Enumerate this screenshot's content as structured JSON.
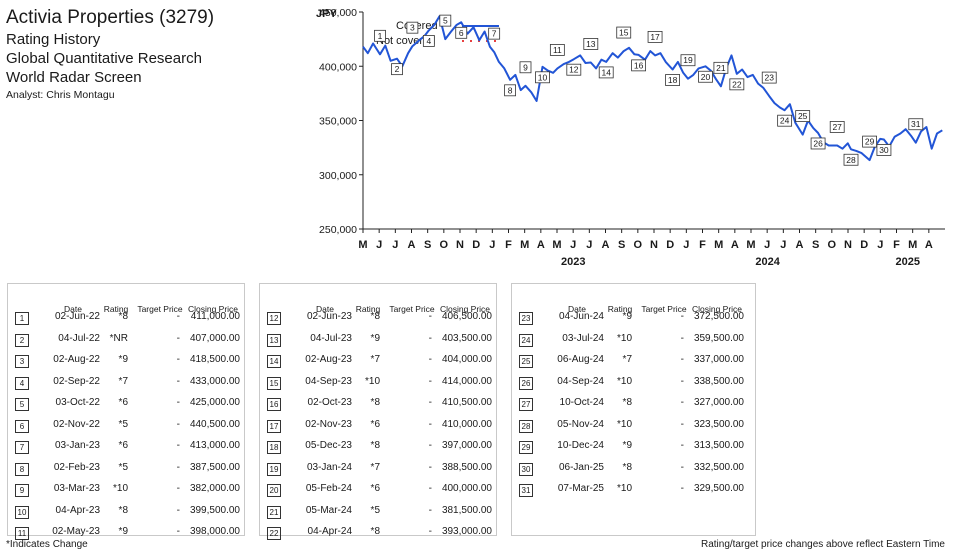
{
  "header": {
    "company": "Activia Properties (3279)",
    "line1": "Rating History",
    "line2": "Global Quantitative Research",
    "line3": "World Radar Screen",
    "analyst": "Analyst: Chris Montagu"
  },
  "chart_data": {
    "type": "line",
    "title": "",
    "ylabel": "JPY",
    "xlabel": "",
    "ylim": [
      250000,
      450000
    ],
    "yticks": [
      "250,000",
      "300,000",
      "350,000",
      "400,000",
      "450,000"
    ],
    "month_ticks": [
      "M",
      "J",
      "J",
      "A",
      "S",
      "O",
      "N",
      "D",
      "J",
      "F",
      "M",
      "A",
      "M",
      "J",
      "J",
      "A",
      "S",
      "O",
      "N",
      "D",
      "J",
      "F",
      "M",
      "A",
      "M",
      "J",
      "J",
      "A",
      "S",
      "O",
      "N",
      "D",
      "J",
      "F",
      "M",
      "A"
    ],
    "year_labels": [
      "2023",
      "2024",
      "2025"
    ],
    "legend": {
      "position": "top-left",
      "covered": "Covered",
      "not_covered": "Not covered"
    },
    "colors": {
      "covered": "#2255d6",
      "not_covered": "#e84040"
    },
    "series": [
      {
        "name": "Covered",
        "points": [
          [
            "2022-05-01",
            418000
          ],
          [
            "2022-05-10",
            412000
          ],
          [
            "2022-05-20",
            421000
          ],
          [
            "2022-06-02",
            411000
          ],
          [
            "2022-06-12",
            419000
          ],
          [
            "2022-06-22",
            405000
          ],
          [
            "2022-07-04",
            407000
          ],
          [
            "2022-07-14",
            400000
          ],
          [
            "2022-07-25",
            412000
          ],
          [
            "2022-08-02",
            418500
          ],
          [
            "2022-08-15",
            424000
          ],
          [
            "2022-08-25",
            428000
          ],
          [
            "2022-09-02",
            433000
          ],
          [
            "2022-09-12",
            438000
          ],
          [
            "2022-09-22",
            446000
          ],
          [
            "2022-10-03",
            425000
          ],
          [
            "2022-10-14",
            432000
          ],
          [
            "2022-10-24",
            438000
          ],
          [
            "2022-11-02",
            440500
          ],
          [
            "2022-11-14",
            430000
          ],
          [
            "2022-11-25",
            436000
          ],
          [
            "2022-12-06",
            424000
          ],
          [
            "2022-12-16",
            432000
          ],
          [
            "2022-12-26",
            418000
          ],
          [
            "2023-01-03",
            413000
          ],
          [
            "2023-01-12",
            404000
          ],
          [
            "2023-01-22",
            398000
          ],
          [
            "2023-02-02",
            387500
          ],
          [
            "2023-02-12",
            392000
          ],
          [
            "2023-02-22",
            378000
          ],
          [
            "2023-03-03",
            382000
          ],
          [
            "2023-03-14",
            376000
          ],
          [
            "2023-03-24",
            368000
          ],
          [
            "2023-04-04",
            399500
          ],
          [
            "2023-04-14",
            396000
          ],
          [
            "2023-04-24",
            394000
          ],
          [
            "2023-05-02",
            398000
          ],
          [
            "2023-05-14",
            402000
          ],
          [
            "2023-05-24",
            404000
          ],
          [
            "2023-06-02",
            406500
          ],
          [
            "2023-06-14",
            410000
          ],
          [
            "2023-06-24",
            403000
          ],
          [
            "2023-07-04",
            403500
          ],
          [
            "2023-07-14",
            398000
          ],
          [
            "2023-07-24",
            406000
          ],
          [
            "2023-08-02",
            404000
          ],
          [
            "2023-08-14",
            412000
          ],
          [
            "2023-08-24",
            408000
          ],
          [
            "2023-09-04",
            414000
          ],
          [
            "2023-09-14",
            417000
          ],
          [
            "2023-09-24",
            411000
          ],
          [
            "2023-10-02",
            410500
          ],
          [
            "2023-10-14",
            406000
          ],
          [
            "2023-10-24",
            414000
          ],
          [
            "2023-11-02",
            410000
          ],
          [
            "2023-11-12",
            412000
          ],
          [
            "2023-11-22",
            404000
          ],
          [
            "2023-12-05",
            397000
          ],
          [
            "2023-12-15",
            404000
          ],
          [
            "2023-12-25",
            394000
          ],
          [
            "2024-01-03",
            388500
          ],
          [
            "2024-01-13",
            392000
          ],
          [
            "2024-01-23",
            398000
          ],
          [
            "2024-02-05",
            400000
          ],
          [
            "2024-02-15",
            396000
          ],
          [
            "2024-02-25",
            388000
          ],
          [
            "2024-03-05",
            381500
          ],
          [
            "2024-03-15",
            398000
          ],
          [
            "2024-03-25",
            410000
          ],
          [
            "2024-04-04",
            393000
          ],
          [
            "2024-04-14",
            397000
          ],
          [
            "2024-04-24",
            390000
          ],
          [
            "2024-05-04",
            392000
          ],
          [
            "2024-05-14",
            384000
          ],
          [
            "2024-05-24",
            380000
          ],
          [
            "2024-06-04",
            372500
          ],
          [
            "2024-06-14",
            366000
          ],
          [
            "2024-06-24",
            362000
          ],
          [
            "2024-07-03",
            359500
          ],
          [
            "2024-07-13",
            365000
          ],
          [
            "2024-07-23",
            348000
          ],
          [
            "2024-08-06",
            337000
          ],
          [
            "2024-08-16",
            350000
          ],
          [
            "2024-08-26",
            343000
          ],
          [
            "2024-09-04",
            338500
          ],
          [
            "2024-09-14",
            330000
          ],
          [
            "2024-09-24",
            327000
          ],
          [
            "2024-10-10",
            327000
          ],
          [
            "2024-10-20",
            324000
          ],
          [
            "2024-10-30",
            329000
          ],
          [
            "2024-11-05",
            323500
          ],
          [
            "2024-11-15",
            322000
          ],
          [
            "2024-11-25",
            320000
          ],
          [
            "2024-12-10",
            313500
          ],
          [
            "2024-12-20",
            326000
          ],
          [
            "2024-12-30",
            333000
          ],
          [
            "2025-01-06",
            332500
          ],
          [
            "2025-01-16",
            326000
          ],
          [
            "2025-01-26",
            335000
          ],
          [
            "2025-02-06",
            338000
          ],
          [
            "2025-02-16",
            342000
          ],
          [
            "2025-02-26",
            336000
          ],
          [
            "2025-03-07",
            329500
          ],
          [
            "2025-03-17",
            340000
          ],
          [
            "2025-03-27",
            344000
          ],
          [
            "2025-04-06",
            324000
          ],
          [
            "2025-04-16",
            338000
          ],
          [
            "2025-04-26",
            341000
          ]
        ]
      }
    ],
    "markers": [
      {
        "label": "1",
        "date": "2022-06-02",
        "value": 411000
      },
      {
        "label": "2",
        "date": "2022-07-04",
        "value": 407000
      },
      {
        "label": "3",
        "date": "2022-08-02",
        "value": 418500
      },
      {
        "label": "4",
        "date": "2022-09-02",
        "value": 433000
      },
      {
        "label": "5",
        "date": "2022-10-03",
        "value": 425000
      },
      {
        "label": "6",
        "date": "2022-11-02",
        "value": 440500
      },
      {
        "label": "7",
        "date": "2023-01-03",
        "value": 413000
      },
      {
        "label": "8",
        "date": "2023-02-02",
        "value": 387500
      },
      {
        "label": "9",
        "date": "2023-03-03",
        "value": 382000
      },
      {
        "label": "10",
        "date": "2023-04-04",
        "value": 399500
      },
      {
        "label": "11",
        "date": "2023-05-02",
        "value": 398000
      },
      {
        "label": "12",
        "date": "2023-06-02",
        "value": 406500
      },
      {
        "label": "13",
        "date": "2023-07-04",
        "value": 403500
      },
      {
        "label": "14",
        "date": "2023-08-02",
        "value": 404000
      },
      {
        "label": "15",
        "date": "2023-09-04",
        "value": 414000
      },
      {
        "label": "16",
        "date": "2023-10-02",
        "value": 410500
      },
      {
        "label": "17",
        "date": "2023-11-02",
        "value": 410000
      },
      {
        "label": "18",
        "date": "2023-12-05",
        "value": 397000
      },
      {
        "label": "19",
        "date": "2024-01-03",
        "value": 388500
      },
      {
        "label": "20",
        "date": "2024-02-05",
        "value": 400000
      },
      {
        "label": "21",
        "date": "2024-03-05",
        "value": 381500
      },
      {
        "label": "22",
        "date": "2024-04-04",
        "value": 393000
      },
      {
        "label": "23",
        "date": "2024-06-04",
        "value": 372500
      },
      {
        "label": "24",
        "date": "2024-07-03",
        "value": 359500
      },
      {
        "label": "25",
        "date": "2024-08-06",
        "value": 337000
      },
      {
        "label": "26",
        "date": "2024-09-04",
        "value": 338500
      },
      {
        "label": "27",
        "date": "2024-10-10",
        "value": 327000
      },
      {
        "label": "28",
        "date": "2024-11-05",
        "value": 323500
      },
      {
        "label": "29",
        "date": "2024-12-10",
        "value": 313500
      },
      {
        "label": "30",
        "date": "2025-01-06",
        "value": 332500
      },
      {
        "label": "31",
        "date": "2025-03-07",
        "value": 329500
      }
    ]
  },
  "table": {
    "headers": {
      "date": "Date",
      "rating": "Rating",
      "target_price": "Target Price",
      "closing_price": "Closing Price"
    },
    "rows": [
      [
        "1",
        "02-Jun-22",
        "*8",
        "-",
        "411,000.00"
      ],
      [
        "2",
        "04-Jul-22",
        "*NR",
        "-",
        "407,000.00"
      ],
      [
        "3",
        "02-Aug-22",
        "*9",
        "-",
        "418,500.00"
      ],
      [
        "4",
        "02-Sep-22",
        "*7",
        "-",
        "433,000.00"
      ],
      [
        "5",
        "03-Oct-22",
        "*6",
        "-",
        "425,000.00"
      ],
      [
        "6",
        "02-Nov-22",
        "*5",
        "-",
        "440,500.00"
      ],
      [
        "7",
        "03-Jan-23",
        "*6",
        "-",
        "413,000.00"
      ],
      [
        "8",
        "02-Feb-23",
        "*5",
        "-",
        "387,500.00"
      ],
      [
        "9",
        "03-Mar-23",
        "*10",
        "-",
        "382,000.00"
      ],
      [
        "10",
        "04-Apr-23",
        "*8",
        "-",
        "399,500.00"
      ],
      [
        "11",
        "02-May-23",
        "*9",
        "-",
        "398,000.00"
      ],
      [
        "12",
        "02-Jun-23",
        "*8",
        "-",
        "406,500.00"
      ],
      [
        "13",
        "04-Jul-23",
        "*9",
        "-",
        "403,500.00"
      ],
      [
        "14",
        "02-Aug-23",
        "*7",
        "-",
        "404,000.00"
      ],
      [
        "15",
        "04-Sep-23",
        "*10",
        "-",
        "414,000.00"
      ],
      [
        "16",
        "02-Oct-23",
        "*8",
        "-",
        "410,500.00"
      ],
      [
        "17",
        "02-Nov-23",
        "*6",
        "-",
        "410,000.00"
      ],
      [
        "18",
        "05-Dec-23",
        "*8",
        "-",
        "397,000.00"
      ],
      [
        "19",
        "03-Jan-24",
        "*7",
        "-",
        "388,500.00"
      ],
      [
        "20",
        "05-Feb-24",
        "*6",
        "-",
        "400,000.00"
      ],
      [
        "21",
        "05-Mar-24",
        "*5",
        "-",
        "381,500.00"
      ],
      [
        "22",
        "04-Apr-24",
        "*8",
        "-",
        "393,000.00"
      ],
      [
        "23",
        "04-Jun-24",
        "*9",
        "-",
        "372,500.00"
      ],
      [
        "24",
        "03-Jul-24",
        "*10",
        "-",
        "359,500.00"
      ],
      [
        "25",
        "06-Aug-24",
        "*7",
        "-",
        "337,000.00"
      ],
      [
        "26",
        "04-Sep-24",
        "*10",
        "-",
        "338,500.00"
      ],
      [
        "27",
        "10-Oct-24",
        "*8",
        "-",
        "327,000.00"
      ],
      [
        "28",
        "05-Nov-24",
        "*10",
        "-",
        "323,500.00"
      ],
      [
        "29",
        "10-Dec-24",
        "*9",
        "-",
        "313,500.00"
      ],
      [
        "30",
        "06-Jan-25",
        "*8",
        "-",
        "332,500.00"
      ],
      [
        "31",
        "07-Mar-25",
        "*10",
        "-",
        "329,500.00"
      ]
    ]
  },
  "footnotes": {
    "left": "*Indicates Change",
    "right": "Rating/target price changes above reflect Eastern Time"
  }
}
